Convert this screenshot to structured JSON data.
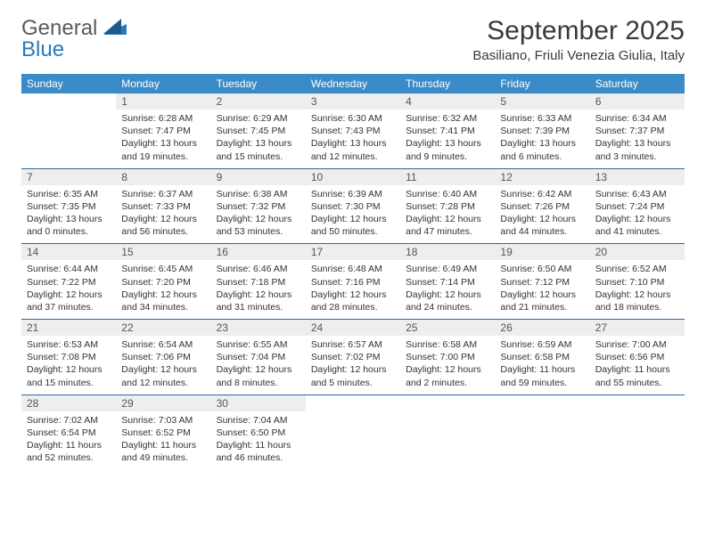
{
  "logo": {
    "general": "General",
    "blue": "Blue"
  },
  "title": "September 2025",
  "location": "Basiliano, Friuli Venezia Giulia, Italy",
  "colors": {
    "header_bg": "#3b8bc8",
    "header_text": "#ffffff",
    "daynum_bg": "#eeeeee",
    "row_border": "#2a6aa0",
    "logo_blue": "#2a7ab8",
    "logo_gray": "#5a5a5a"
  },
  "weekdays": [
    "Sunday",
    "Monday",
    "Tuesday",
    "Wednesday",
    "Thursday",
    "Friday",
    "Saturday"
  ],
  "weeks": [
    [
      null,
      {
        "n": "1",
        "sunrise": "6:28 AM",
        "sunset": "7:47 PM",
        "daylight": "13 hours and 19 minutes."
      },
      {
        "n": "2",
        "sunrise": "6:29 AM",
        "sunset": "7:45 PM",
        "daylight": "13 hours and 15 minutes."
      },
      {
        "n": "3",
        "sunrise": "6:30 AM",
        "sunset": "7:43 PM",
        "daylight": "13 hours and 12 minutes."
      },
      {
        "n": "4",
        "sunrise": "6:32 AM",
        "sunset": "7:41 PM",
        "daylight": "13 hours and 9 minutes."
      },
      {
        "n": "5",
        "sunrise": "6:33 AM",
        "sunset": "7:39 PM",
        "daylight": "13 hours and 6 minutes."
      },
      {
        "n": "6",
        "sunrise": "6:34 AM",
        "sunset": "7:37 PM",
        "daylight": "13 hours and 3 minutes."
      }
    ],
    [
      {
        "n": "7",
        "sunrise": "6:35 AM",
        "sunset": "7:35 PM",
        "daylight": "13 hours and 0 minutes."
      },
      {
        "n": "8",
        "sunrise": "6:37 AM",
        "sunset": "7:33 PM",
        "daylight": "12 hours and 56 minutes."
      },
      {
        "n": "9",
        "sunrise": "6:38 AM",
        "sunset": "7:32 PM",
        "daylight": "12 hours and 53 minutes."
      },
      {
        "n": "10",
        "sunrise": "6:39 AM",
        "sunset": "7:30 PM",
        "daylight": "12 hours and 50 minutes."
      },
      {
        "n": "11",
        "sunrise": "6:40 AM",
        "sunset": "7:28 PM",
        "daylight": "12 hours and 47 minutes."
      },
      {
        "n": "12",
        "sunrise": "6:42 AM",
        "sunset": "7:26 PM",
        "daylight": "12 hours and 44 minutes."
      },
      {
        "n": "13",
        "sunrise": "6:43 AM",
        "sunset": "7:24 PM",
        "daylight": "12 hours and 41 minutes."
      }
    ],
    [
      {
        "n": "14",
        "sunrise": "6:44 AM",
        "sunset": "7:22 PM",
        "daylight": "12 hours and 37 minutes."
      },
      {
        "n": "15",
        "sunrise": "6:45 AM",
        "sunset": "7:20 PM",
        "daylight": "12 hours and 34 minutes."
      },
      {
        "n": "16",
        "sunrise": "6:46 AM",
        "sunset": "7:18 PM",
        "daylight": "12 hours and 31 minutes."
      },
      {
        "n": "17",
        "sunrise": "6:48 AM",
        "sunset": "7:16 PM",
        "daylight": "12 hours and 28 minutes."
      },
      {
        "n": "18",
        "sunrise": "6:49 AM",
        "sunset": "7:14 PM",
        "daylight": "12 hours and 24 minutes."
      },
      {
        "n": "19",
        "sunrise": "6:50 AM",
        "sunset": "7:12 PM",
        "daylight": "12 hours and 21 minutes."
      },
      {
        "n": "20",
        "sunrise": "6:52 AM",
        "sunset": "7:10 PM",
        "daylight": "12 hours and 18 minutes."
      }
    ],
    [
      {
        "n": "21",
        "sunrise": "6:53 AM",
        "sunset": "7:08 PM",
        "daylight": "12 hours and 15 minutes."
      },
      {
        "n": "22",
        "sunrise": "6:54 AM",
        "sunset": "7:06 PM",
        "daylight": "12 hours and 12 minutes."
      },
      {
        "n": "23",
        "sunrise": "6:55 AM",
        "sunset": "7:04 PM",
        "daylight": "12 hours and 8 minutes."
      },
      {
        "n": "24",
        "sunrise": "6:57 AM",
        "sunset": "7:02 PM",
        "daylight": "12 hours and 5 minutes."
      },
      {
        "n": "25",
        "sunrise": "6:58 AM",
        "sunset": "7:00 PM",
        "daylight": "12 hours and 2 minutes."
      },
      {
        "n": "26",
        "sunrise": "6:59 AM",
        "sunset": "6:58 PM",
        "daylight": "11 hours and 59 minutes."
      },
      {
        "n": "27",
        "sunrise": "7:00 AM",
        "sunset": "6:56 PM",
        "daylight": "11 hours and 55 minutes."
      }
    ],
    [
      {
        "n": "28",
        "sunrise": "7:02 AM",
        "sunset": "6:54 PM",
        "daylight": "11 hours and 52 minutes."
      },
      {
        "n": "29",
        "sunrise": "7:03 AM",
        "sunset": "6:52 PM",
        "daylight": "11 hours and 49 minutes."
      },
      {
        "n": "30",
        "sunrise": "7:04 AM",
        "sunset": "6:50 PM",
        "daylight": "11 hours and 46 minutes."
      },
      null,
      null,
      null,
      null
    ]
  ],
  "labels": {
    "sunrise": "Sunrise:",
    "sunset": "Sunset:",
    "daylight": "Daylight:"
  }
}
